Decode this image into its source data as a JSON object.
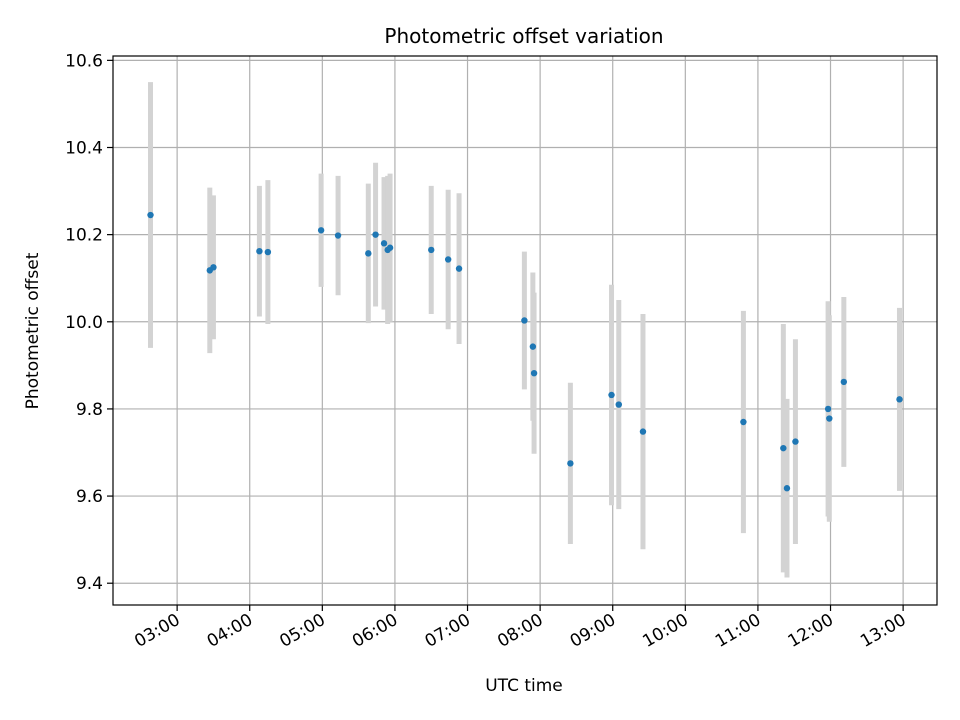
{
  "chart_data": {
    "type": "scatter",
    "title": "Photometric offset variation",
    "xlabel": "UTC time",
    "ylabel": "Photometric offset",
    "x_axis_type": "time",
    "xlim": [
      "02:07",
      "13:28"
    ],
    "ylim": [
      9.35,
      10.61
    ],
    "x_ticks": [
      "03:00",
      "04:00",
      "05:00",
      "06:00",
      "07:00",
      "08:00",
      "09:00",
      "10:00",
      "11:00",
      "12:00",
      "13:00"
    ],
    "y_ticks": [
      "9.4",
      "9.6",
      "9.8",
      "10.0",
      "10.2",
      "10.4",
      "10.6"
    ],
    "y_tick_values": [
      9.4,
      9.6,
      9.8,
      10.0,
      10.2,
      10.4,
      10.6
    ],
    "grid": true,
    "colors": {
      "marker": "#1f77b4",
      "errorbar": "#d3d3d3",
      "grid": "#b0b0b0"
    },
    "series": [
      {
        "points": [
          {
            "x": "02:38",
            "y": 10.245,
            "err": 0.305
          },
          {
            "x": "03:27",
            "y": 10.118,
            "err": 0.19
          },
          {
            "x": "03:30",
            "y": 10.125,
            "err": 0.165
          },
          {
            "x": "04:08",
            "y": 10.162,
            "err": 0.15
          },
          {
            "x": "04:15",
            "y": 10.16,
            "err": 0.165
          },
          {
            "x": "04:59",
            "y": 10.21,
            "err": 0.13
          },
          {
            "x": "05:13",
            "y": 10.198,
            "err": 0.137
          },
          {
            "x": "05:38",
            "y": 10.157,
            "err": 0.16
          },
          {
            "x": "05:44",
            "y": 10.2,
            "err": 0.165
          },
          {
            "x": "05:51",
            "y": 10.18,
            "err": 0.152
          },
          {
            "x": "05:54",
            "y": 10.165,
            "err": 0.17
          },
          {
            "x": "05:56",
            "y": 10.17,
            "err": 0.17
          },
          {
            "x": "06:30",
            "y": 10.165,
            "err": 0.147
          },
          {
            "x": "06:44",
            "y": 10.143,
            "err": 0.16
          },
          {
            "x": "06:53",
            "y": 10.122,
            "err": 0.173
          },
          {
            "x": "07:47",
            "y": 10.003,
            "err": 0.158
          },
          {
            "x": "07:54",
            "y": 9.943,
            "err": 0.17
          },
          {
            "x": "07:55",
            "y": 9.882,
            "err": 0.185
          },
          {
            "x": "08:25",
            "y": 9.675,
            "err": 0.185
          },
          {
            "x": "08:59",
            "y": 9.832,
            "err": 0.253
          },
          {
            "x": "09:05",
            "y": 9.81,
            "err": 0.24
          },
          {
            "x": "09:25",
            "y": 9.748,
            "err": 0.27
          },
          {
            "x": "10:48",
            "y": 9.77,
            "err": 0.255
          },
          {
            "x": "11:21",
            "y": 9.71,
            "err": 0.285
          },
          {
            "x": "11:24",
            "y": 9.618,
            "err": 0.205
          },
          {
            "x": "11:31",
            "y": 9.725,
            "err": 0.235
          },
          {
            "x": "11:58",
            "y": 9.8,
            "err": 0.247
          },
          {
            "x": "11:59",
            "y": 9.778,
            "err": 0.237
          },
          {
            "x": "12:11",
            "y": 9.862,
            "err": 0.195
          },
          {
            "x": "12:57",
            "y": 9.822,
            "err": 0.21
          }
        ]
      }
    ]
  }
}
